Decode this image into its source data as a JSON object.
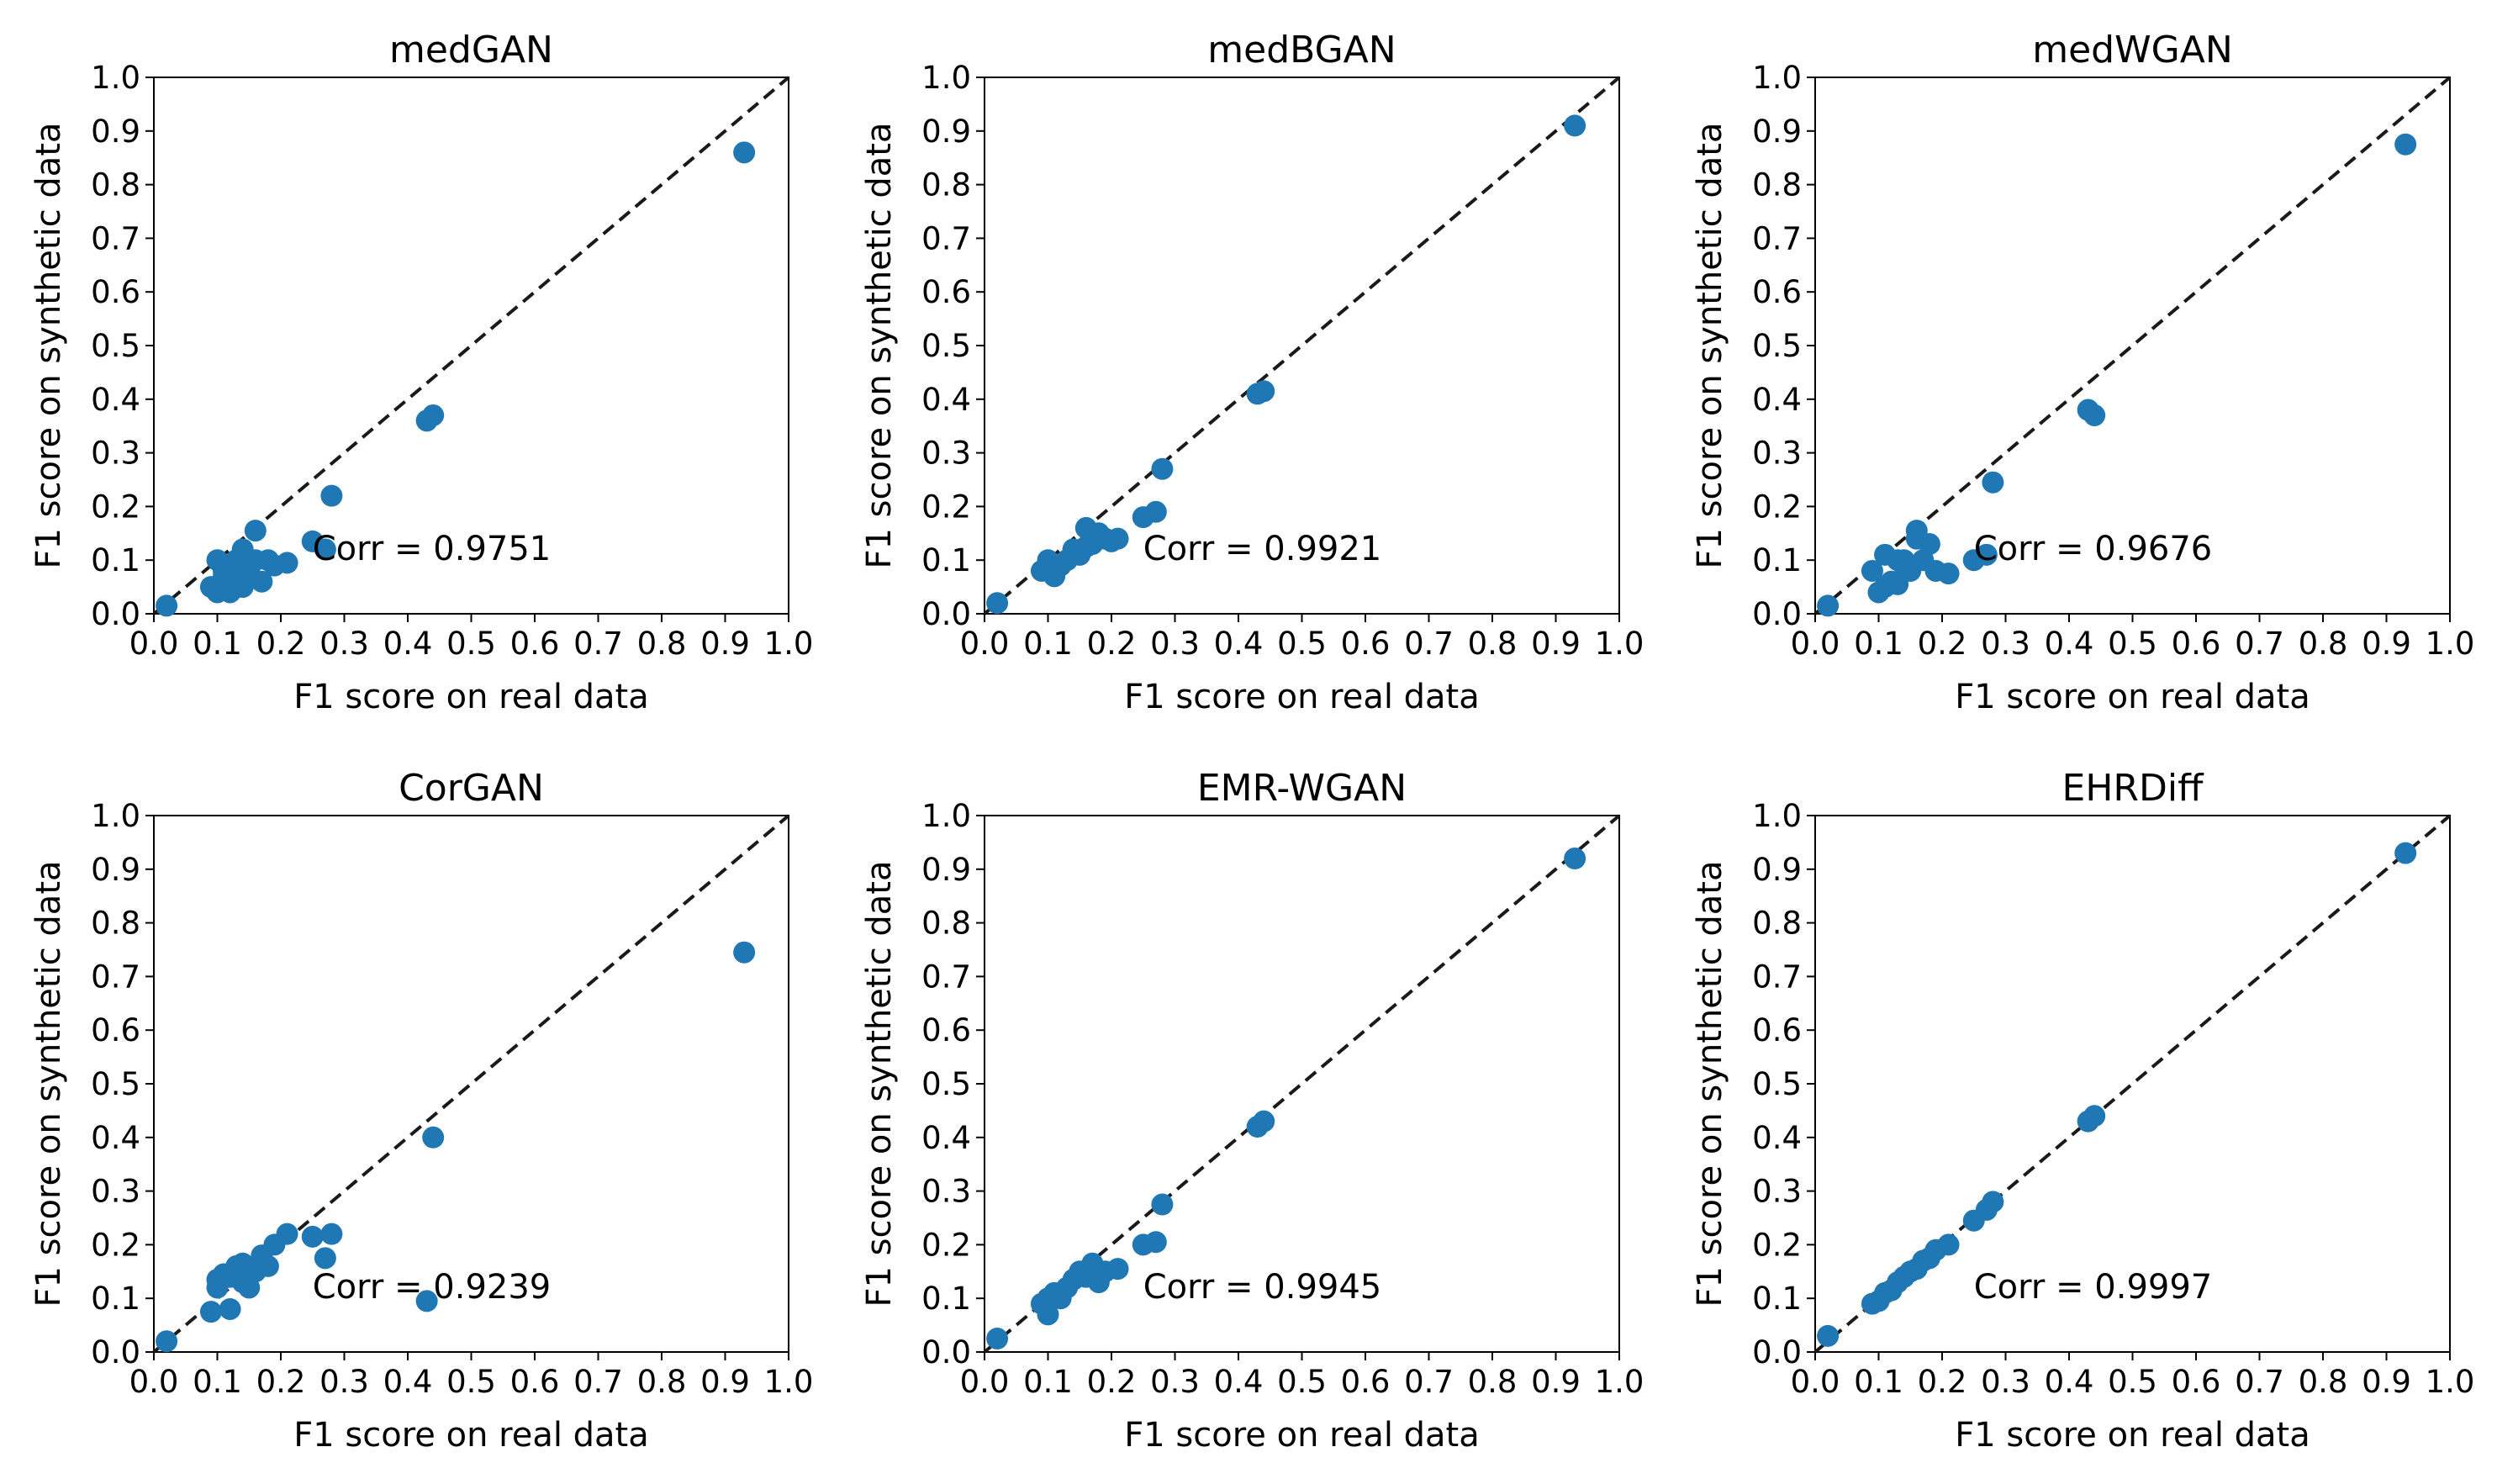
{
  "figure": {
    "marker_color": "#1f77b4",
    "line_color": "#1a1a1a"
  },
  "chart_data": [
    {
      "type": "scatter",
      "title": "medGAN",
      "xlabel": "F1 score on real data",
      "ylabel": "F1 score on synthetic data",
      "xlim": [
        0,
        1
      ],
      "ylim": [
        0,
        1
      ],
      "xticks": [
        "0.0",
        "0.1",
        "0.2",
        "0.3",
        "0.4",
        "0.5",
        "0.6",
        "0.7",
        "0.8",
        "0.9",
        "1.0"
      ],
      "yticks": [
        "0.0",
        "0.1",
        "0.2",
        "0.3",
        "0.4",
        "0.5",
        "0.6",
        "0.7",
        "0.8",
        "0.9",
        "1.0"
      ],
      "reference_line": "y = x",
      "annotation": "Corr = 0.9751",
      "annotation_at": [
        0.25,
        0.1
      ],
      "x": [
        0.02,
        0.09,
        0.1,
        0.11,
        0.1,
        0.12,
        0.13,
        0.12,
        0.14,
        0.15,
        0.13,
        0.11,
        0.14,
        0.16,
        0.17,
        0.18,
        0.19,
        0.21,
        0.16,
        0.25,
        0.27,
        0.28,
        0.43,
        0.44,
        0.93
      ],
      "y": [
        0.015,
        0.05,
        0.1,
        0.08,
        0.04,
        0.06,
        0.09,
        0.04,
        0.05,
        0.08,
        0.1,
        0.07,
        0.12,
        0.155,
        0.06,
        0.1,
        0.09,
        0.095,
        0.1,
        0.135,
        0.12,
        0.22,
        0.36,
        0.37,
        0.86
      ]
    },
    {
      "type": "scatter",
      "title": "medBGAN",
      "xlabel": "F1 score on real data",
      "ylabel": "F1 score on synthetic data",
      "xlim": [
        0,
        1
      ],
      "ylim": [
        0,
        1
      ],
      "xticks": [
        "0.0",
        "0.1",
        "0.2",
        "0.3",
        "0.4",
        "0.5",
        "0.6",
        "0.7",
        "0.8",
        "0.9",
        "1.0"
      ],
      "yticks": [
        "0.0",
        "0.1",
        "0.2",
        "0.3",
        "0.4",
        "0.5",
        "0.6",
        "0.7",
        "0.8",
        "0.9",
        "1.0"
      ],
      "reference_line": "y = x",
      "annotation": "Corr = 0.9921",
      "annotation_at": [
        0.25,
        0.1
      ],
      "x": [
        0.02,
        0.09,
        0.1,
        0.11,
        0.12,
        0.13,
        0.14,
        0.15,
        0.16,
        0.17,
        0.18,
        0.19,
        0.2,
        0.14,
        0.16,
        0.21,
        0.25,
        0.27,
        0.28,
        0.43,
        0.44,
        0.93
      ],
      "y": [
        0.02,
        0.08,
        0.1,
        0.07,
        0.09,
        0.1,
        0.12,
        0.11,
        0.16,
        0.13,
        0.15,
        0.14,
        0.135,
        0.12,
        0.125,
        0.14,
        0.18,
        0.19,
        0.27,
        0.41,
        0.415,
        0.91
      ]
    },
    {
      "type": "scatter",
      "title": "medWGAN",
      "xlabel": "F1 score on real data",
      "ylabel": "F1 score on synthetic data",
      "xlim": [
        0,
        1
      ],
      "ylim": [
        0,
        1
      ],
      "xticks": [
        "0.0",
        "0.1",
        "0.2",
        "0.3",
        "0.4",
        "0.5",
        "0.6",
        "0.7",
        "0.8",
        "0.9",
        "1.0"
      ],
      "yticks": [
        "0.0",
        "0.1",
        "0.2",
        "0.3",
        "0.4",
        "0.5",
        "0.6",
        "0.7",
        "0.8",
        "0.9",
        "1.0"
      ],
      "reference_line": "y = x",
      "annotation": "Corr = 0.9676",
      "annotation_at": [
        0.25,
        0.1
      ],
      "x": [
        0.02,
        0.09,
        0.1,
        0.11,
        0.12,
        0.13,
        0.14,
        0.15,
        0.16,
        0.17,
        0.18,
        0.19,
        0.21,
        0.11,
        0.13,
        0.14,
        0.16,
        0.25,
        0.27,
        0.28,
        0.43,
        0.44,
        0.93
      ],
      "y": [
        0.015,
        0.08,
        0.04,
        0.11,
        0.06,
        0.1,
        0.09,
        0.08,
        0.155,
        0.1,
        0.13,
        0.08,
        0.075,
        0.05,
        0.055,
        0.1,
        0.14,
        0.1,
        0.11,
        0.245,
        0.38,
        0.37,
        0.875
      ]
    },
    {
      "type": "scatter",
      "title": "CorGAN",
      "xlabel": "F1 score on real data",
      "ylabel": "F1 score on synthetic data",
      "xlim": [
        0,
        1
      ],
      "ylim": [
        0,
        1
      ],
      "xticks": [
        "0.0",
        "0.1",
        "0.2",
        "0.3",
        "0.4",
        "0.5",
        "0.6",
        "0.7",
        "0.8",
        "0.9",
        "1.0"
      ],
      "yticks": [
        "0.0",
        "0.1",
        "0.2",
        "0.3",
        "0.4",
        "0.5",
        "0.6",
        "0.7",
        "0.8",
        "0.9",
        "1.0"
      ],
      "reference_line": "y = x",
      "annotation": "Corr = 0.9239",
      "annotation_at": [
        0.25,
        0.1
      ],
      "x": [
        0.02,
        0.09,
        0.1,
        0.11,
        0.12,
        0.13,
        0.14,
        0.15,
        0.16,
        0.17,
        0.18,
        0.19,
        0.21,
        0.1,
        0.12,
        0.14,
        0.25,
        0.27,
        0.28,
        0.43,
        0.44,
        0.93
      ],
      "y": [
        0.02,
        0.075,
        0.12,
        0.145,
        0.08,
        0.16,
        0.13,
        0.12,
        0.15,
        0.18,
        0.16,
        0.2,
        0.22,
        0.135,
        0.14,
        0.165,
        0.215,
        0.175,
        0.22,
        0.095,
        0.4,
        0.745
      ]
    },
    {
      "type": "scatter",
      "title": "EMR-WGAN",
      "xlabel": "F1 score on real data",
      "ylabel": "F1 score on synthetic data",
      "xlim": [
        0,
        1
      ],
      "ylim": [
        0,
        1
      ],
      "xticks": [
        "0.0",
        "0.1",
        "0.2",
        "0.3",
        "0.4",
        "0.5",
        "0.6",
        "0.7",
        "0.8",
        "0.9",
        "1.0"
      ],
      "yticks": [
        "0.0",
        "0.1",
        "0.2",
        "0.3",
        "0.4",
        "0.5",
        "0.6",
        "0.7",
        "0.8",
        "0.9",
        "1.0"
      ],
      "reference_line": "y = x",
      "annotation": "Corr = 0.9945",
      "annotation_at": [
        0.25,
        0.1
      ],
      "x": [
        0.02,
        0.09,
        0.1,
        0.11,
        0.12,
        0.13,
        0.14,
        0.15,
        0.16,
        0.17,
        0.18,
        0.19,
        0.21,
        0.1,
        0.25,
        0.27,
        0.28,
        0.43,
        0.44,
        0.93
      ],
      "y": [
        0.025,
        0.09,
        0.07,
        0.11,
        0.1,
        0.12,
        0.135,
        0.15,
        0.14,
        0.165,
        0.13,
        0.15,
        0.155,
        0.1,
        0.2,
        0.205,
        0.275,
        0.42,
        0.43,
        0.92
      ]
    },
    {
      "type": "scatter",
      "title": "EHRDiff",
      "xlabel": "F1 score on real data",
      "ylabel": "F1 score on synthetic data",
      "xlim": [
        0,
        1
      ],
      "ylim": [
        0,
        1
      ],
      "xticks": [
        "0.0",
        "0.1",
        "0.2",
        "0.3",
        "0.4",
        "0.5",
        "0.6",
        "0.7",
        "0.8",
        "0.9",
        "1.0"
      ],
      "yticks": [
        "0.0",
        "0.1",
        "0.2",
        "0.3",
        "0.4",
        "0.5",
        "0.6",
        "0.7",
        "0.8",
        "0.9",
        "1.0"
      ],
      "reference_line": "y = x",
      "annotation": "Corr = 0.9997",
      "annotation_at": [
        0.25,
        0.1
      ],
      "x": [
        0.02,
        0.09,
        0.1,
        0.11,
        0.12,
        0.13,
        0.14,
        0.15,
        0.16,
        0.17,
        0.18,
        0.19,
        0.21,
        0.25,
        0.27,
        0.28,
        0.43,
        0.44,
        0.93
      ],
      "y": [
        0.03,
        0.09,
        0.095,
        0.11,
        0.115,
        0.13,
        0.14,
        0.15,
        0.155,
        0.17,
        0.175,
        0.19,
        0.2,
        0.245,
        0.265,
        0.28,
        0.43,
        0.44,
        0.93
      ]
    }
  ]
}
